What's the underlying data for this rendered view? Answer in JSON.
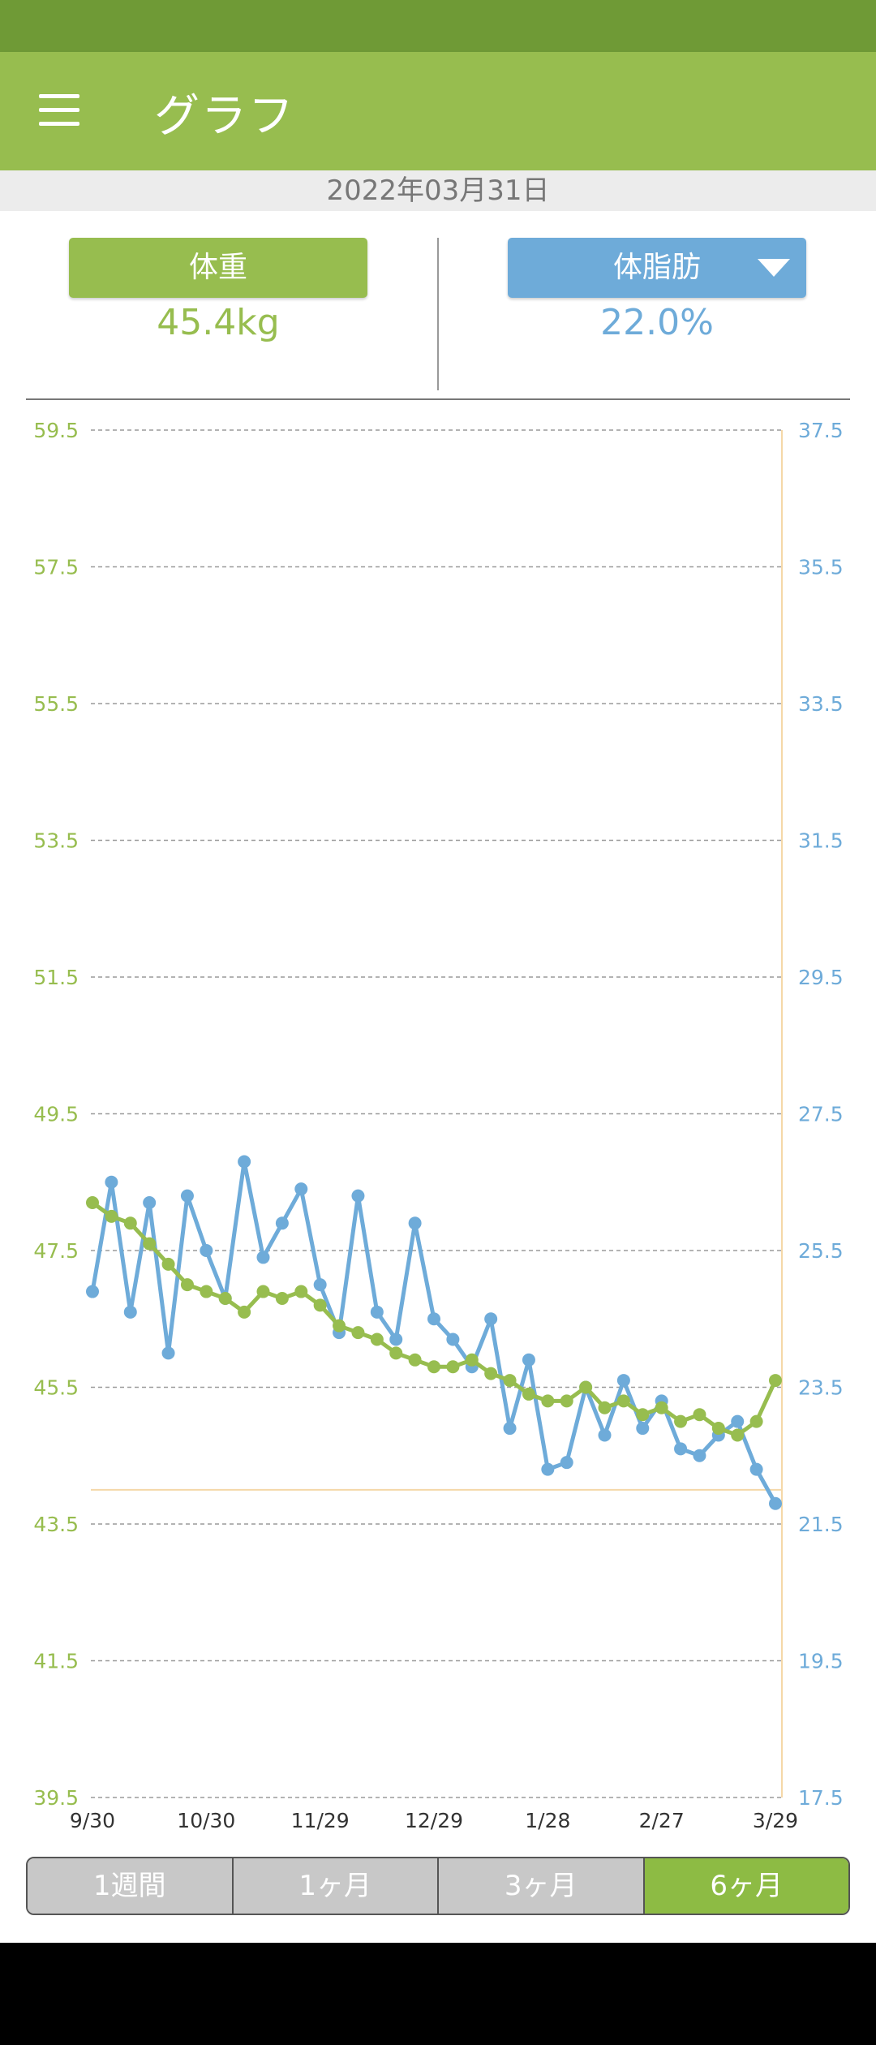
{
  "header": {
    "title": "グラフ"
  },
  "date": "2022年03月31日",
  "weight": {
    "label": "体重",
    "value": "45.4kg"
  },
  "body_fat": {
    "label": "体脂肪",
    "value": "22.0%"
  },
  "range_tabs": [
    {
      "label": "1週間",
      "active": false
    },
    {
      "label": "1ヶ月",
      "active": false
    },
    {
      "label": "3ヶ月",
      "active": false
    },
    {
      "label": "6ヶ月",
      "active": true
    }
  ],
  "colors": {
    "weight": "#97bd4f",
    "body_fat": "#6eabd9",
    "target_line": "#f5d8a8"
  },
  "chart_data": {
    "type": "line",
    "x_tick_labels": [
      "9/30",
      "10/30",
      "11/29",
      "12/29",
      "1/28",
      "2/27",
      "3/29"
    ],
    "left_axis": {
      "ticks": [
        "59.5",
        "57.5",
        "55.5",
        "53.5",
        "51.5",
        "49.5",
        "47.5",
        "45.5",
        "43.5",
        "41.5",
        "39.5"
      ],
      "ylim": [
        39.5,
        59.5
      ]
    },
    "right_axis": {
      "ticks": [
        "37.5",
        "35.5",
        "33.5",
        "31.5",
        "29.5",
        "27.5",
        "25.5",
        "23.5",
        "21.5",
        "19.5",
        "17.5"
      ],
      "ylim": [
        17.5,
        37.5
      ]
    },
    "target_body_fat": 22.0,
    "grid": true,
    "series": [
      {
        "axis": "left",
        "color": "#97bd4f",
        "x": [
          "9/30",
          "10/5",
          "10/10",
          "10/15",
          "10/20",
          "10/25",
          "10/30",
          "11/4",
          "11/9",
          "11/14",
          "11/19",
          "11/24",
          "11/29",
          "12/4",
          "12/9",
          "12/14",
          "12/19",
          "12/24",
          "12/29",
          "1/3",
          "1/8",
          "1/13",
          "1/18",
          "1/23",
          "1/28",
          "2/2",
          "2/7",
          "2/12",
          "2/17",
          "2/22",
          "2/27",
          "3/4",
          "3/9",
          "3/14",
          "3/19",
          "3/24",
          "3/29"
        ],
        "values": [
          48.2,
          48.0,
          47.9,
          47.6,
          47.3,
          47.0,
          46.9,
          46.8,
          46.6,
          46.9,
          46.8,
          46.9,
          46.7,
          46.4,
          46.3,
          46.2,
          46.0,
          45.9,
          45.8,
          45.8,
          45.9,
          45.7,
          45.6,
          45.4,
          45.3,
          45.3,
          45.5,
          45.2,
          45.3,
          45.1,
          45.2,
          45.0,
          45.1,
          44.9,
          44.8,
          45.0,
          45.6
        ]
      },
      {
        "axis": "right",
        "color": "#6eabd9",
        "x": [
          "9/30",
          "10/5",
          "10/10",
          "10/15",
          "10/20",
          "10/25",
          "10/30",
          "11/4",
          "11/9",
          "11/14",
          "11/19",
          "11/24",
          "11/29",
          "12/4",
          "12/9",
          "12/14",
          "12/19",
          "12/24",
          "12/29",
          "1/3",
          "1/8",
          "1/13",
          "1/18",
          "1/23",
          "1/28",
          "2/2",
          "2/7",
          "2/12",
          "2/17",
          "2/22",
          "2/27",
          "3/4",
          "3/9",
          "3/14",
          "3/19",
          "3/24",
          "3/29"
        ],
        "values": [
          24.9,
          26.5,
          24.6,
          26.2,
          24.0,
          26.3,
          25.5,
          24.8,
          26.8,
          25.4,
          25.9,
          26.4,
          25.0,
          24.3,
          26.3,
          24.6,
          24.2,
          25.9,
          24.5,
          24.2,
          23.8,
          24.5,
          22.9,
          23.9,
          22.3,
          22.4,
          23.5,
          22.8,
          23.6,
          22.9,
          23.3,
          22.6,
          22.5,
          22.8,
          23.0,
          22.3,
          21.8
        ]
      }
    ]
  }
}
